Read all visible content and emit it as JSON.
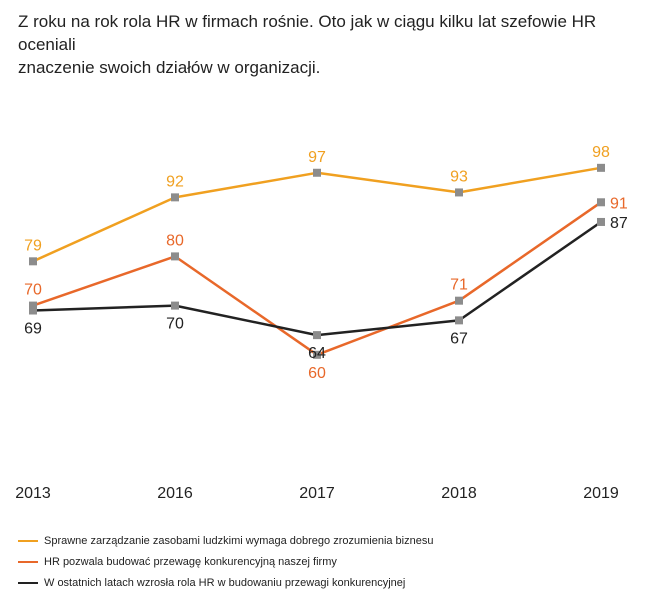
{
  "title_lines": [
    "Z roku na rok rola HR w firmach rośnie. Oto jak w ciągu kilku lat szefowie HR oceniali",
    "znaczenie swoich działów w organizacji."
  ],
  "colors": {
    "series_0": "#f0a020",
    "series_1": "#e8682a",
    "series_2": "#222222",
    "marker": "#8c8c8c"
  },
  "chart_data": {
    "type": "line",
    "title": "Z roku na rok rola HR w firmach rośnie. Oto jak w ciągu kilku lat szefowie HR oceniali znaczenie swoich działów w organizacji.",
    "categories": [
      "2013",
      "2016",
      "2017",
      "2018",
      "2019"
    ],
    "series": [
      {
        "name": "Sprawne zarządzanie zasobami ludzkimi wymaga dobrego zrozumienia biznesu",
        "values": [
          79,
          92,
          97,
          93,
          98
        ],
        "label_pos": [
          "above",
          "above",
          "above",
          "above",
          "above"
        ]
      },
      {
        "name": "HR pozwala budować przewagę konkurencyjną naszej firmy",
        "values": [
          70,
          80,
          60,
          71,
          91
        ],
        "label_pos": [
          "above",
          "above",
          "below",
          "above",
          "right"
        ]
      },
      {
        "name": "W ostatnich latach wzrosła rola HR w budowaniu przewagi konkurencyjnej",
        "values": [
          69,
          70,
          64,
          67,
          87
        ],
        "label_pos": [
          "below",
          "below",
          "below",
          "below",
          "right"
        ]
      }
    ],
    "xlabel": "",
    "ylabel": "",
    "grid": false,
    "legend_position": "bottom"
  }
}
